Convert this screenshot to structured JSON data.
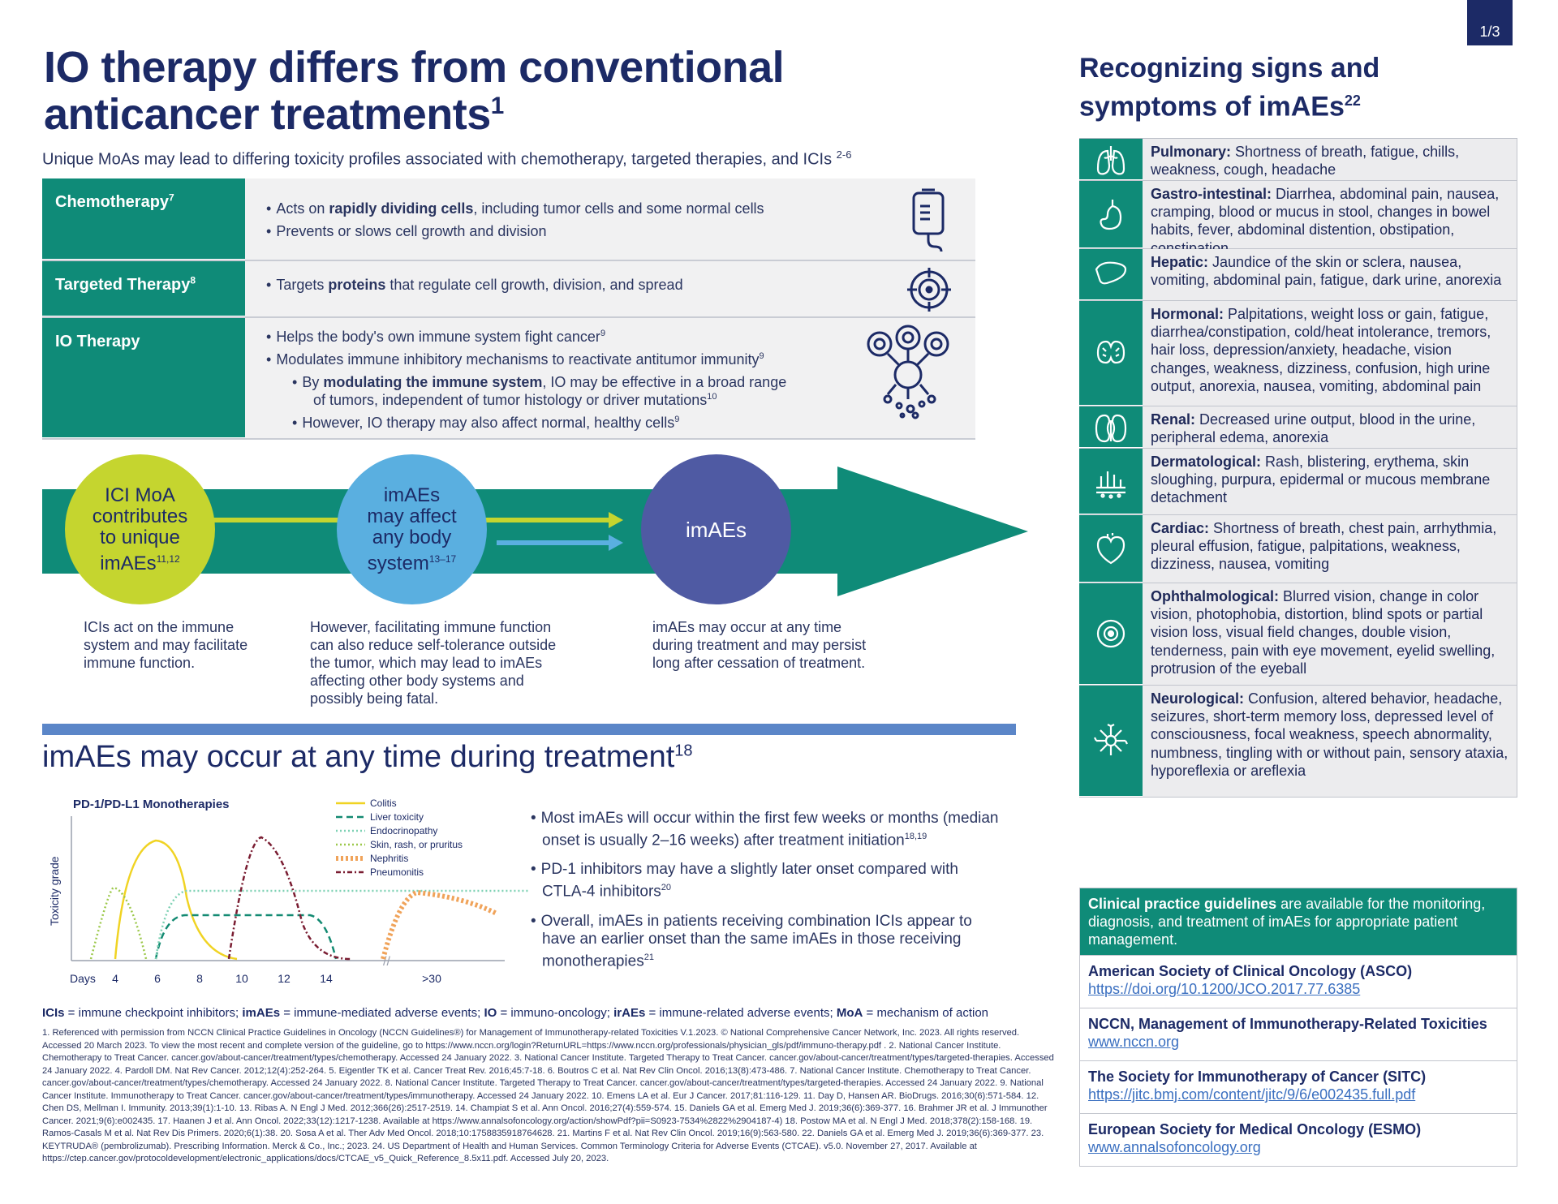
{
  "page_indicator": "1/3",
  "headline": {
    "line1": "IO therapy differs from conventional",
    "line2": "anticancer treatments",
    "sup": "1"
  },
  "subhead": {
    "text": "Unique MoAs may lead to differing toxicity profiles associated with chemotherapy, targeted therapies, and ICIs",
    "sup": "2-6"
  },
  "moa_table": {
    "chemo": {
      "label": "Chemotherapy",
      "sup": "7",
      "b1_pre": "Acts on ",
      "b1_bold": "rapidly dividing cells",
      "b1_post": ", including tumor cells and some normal cells",
      "b2": "Prevents or slows cell growth and division"
    },
    "targeted": {
      "label": "Targeted Therapy",
      "sup": "8",
      "b1_pre": "Targets ",
      "b1_bold": "proteins",
      "b1_post": " that regulate cell growth, division, and spread"
    },
    "io": {
      "label": "IO Therapy",
      "b1": "Helps the body's own immune system fight cancer",
      "b1_sup": "9",
      "b2": "Modulates immune inhibitory mechanisms to reactivate antitumor immunity",
      "b2_sup": "9",
      "b3_pre": "By ",
      "b3_bold": "modulating the immune system",
      "b3_post": ", IO may be effective in a broad range",
      "b3_cont": "of tumors, independent of tumor histology or driver mutations",
      "b3_sup": "10",
      "b4": "However, IO therapy may also affect normal, healthy cells",
      "b4_sup": "9"
    }
  },
  "flow": {
    "c1": {
      "l1": "ICI MoA",
      "l2": "contributes",
      "l3": "to unique",
      "l4": "imAEs",
      "sup": "11,12",
      "caption": [
        "ICIs act on the immune",
        "system and may facilitate",
        "immune function."
      ]
    },
    "c2": {
      "l1": "imAEs",
      "l2": "may affect",
      "l3": "any body",
      "l4": "system",
      "sup": "13–17",
      "caption": [
        "However, facilitating immune function",
        "can also reduce self-tolerance outside",
        "the tumor, which may lead to imAEs",
        "affecting other body systems and",
        "possibly being fatal."
      ]
    },
    "c3": {
      "label": "imAEs",
      "caption": [
        "imAEs may occur at any time",
        "during treatment and may persist",
        "long after cessation of treatment."
      ]
    }
  },
  "section2": {
    "title": "imAEs may occur at any time during treatment",
    "sup": "18"
  },
  "chart_data": {
    "type": "line",
    "title": "PD-1/PD-L1 Monotherapies",
    "ylabel": "Toxicity grade",
    "xlabel": "Days",
    "x_ticks": [
      "4",
      "6",
      "8",
      "10",
      "12",
      "14",
      ">30"
    ],
    "series": [
      {
        "name": "Colitis",
        "color": "#f0d323",
        "style": "solid"
      },
      {
        "name": "Liver toxicity",
        "color": "#138a72",
        "style": "dashed"
      },
      {
        "name": "Endocrinopathy",
        "color": "#7dd1b4",
        "style": "dotted"
      },
      {
        "name": "Skin, rash, or pruritus",
        "color": "#9cc84a",
        "style": "dotted"
      },
      {
        "name": "Nephritis",
        "color": "#f0a35a",
        "style": "dashed-thick"
      },
      {
        "name": "Pneumonitis",
        "color": "#7a1d32",
        "style": "dash-dot"
      }
    ]
  },
  "section2_bullets": [
    {
      "text": "Most imAEs will occur within the first few weeks or months (median onset is usually 2–16 weeks) after treatment initiation",
      "sup": "18,19"
    },
    {
      "text": "PD-1 inhibitors may have a slightly later onset compared with CTLA-4 inhibitors",
      "sup": "20"
    },
    {
      "text": "Overall, imAEs in patients receiving combination ICIs appear to have an earlier onset than the same imAEs in those receiving monotherapies",
      "sup": "21"
    }
  ],
  "abbreviations": [
    {
      "term": "ICIs",
      "def": " = immune checkpoint inhibitors; "
    },
    {
      "term": "imAEs",
      "def": " = immune-mediated adverse events; "
    },
    {
      "term": "IO",
      "def": " = immuno-oncology; "
    },
    {
      "term": "irAEs",
      "def": " = immune-related adverse events; "
    },
    {
      "term": "MoA",
      "def": " = mechanism of action"
    }
  ],
  "references": "1. Referenced with permission from NCCN Clinical Practice Guidelines in Oncology (NCCN Guidelines®) for Management of Immunotherapy-related Toxicities V.1.2023. © National Comprehensive Cancer Network, Inc. 2023. All rights reserved. Accessed 20 March 2023. To view the most recent and complete version of the guideline, go to https://www.nccn.org/login?ReturnURL=https://www.nccn.org/professionals/physician_gls/pdf/immuno-therapy.pdf . 2. National Cancer Institute. Chemotherapy to Treat Cancer. cancer.gov/about-cancer/treatment/types/chemotherapy. Accessed 24 January 2022. 3. National Cancer Institute. Targeted Therapy to Treat Cancer. cancer.gov/about-cancer/treatment/types/targeted-therapies. Accessed 24 January 2022. 4. Pardoll DM. Nat Rev Cancer. 2012;12(4):252-264. 5. Eigentler TK et al. Cancer Treat Rev. 2016;45:7-18. 6. Boutros C et al. Nat Rev Clin Oncol. 2016;13(8):473-486. 7. National Cancer Institute. Chemotherapy to Treat Cancer. cancer.gov/about-cancer/treatment/types/chemotherapy. Accessed 24 January 2022. 8. National Cancer Institute. Targeted Therapy to Treat Cancer. cancer.gov/about-cancer/treatment/types/targeted-therapies. Accessed 24 January 2022. 9. National Cancer Institute. Immunotherapy to Treat Cancer. cancer.gov/about-cancer/treatment/types/immunotherapy. Accessed 24 January 2022. 10. Emens LA et al. Eur J Cancer. 2017;81:116-129. 11. Day D, Hansen AR. BioDrugs. 2016;30(6):571-584. 12. Chen DS, Mellman I. Immunity. 2013;39(1):1-10. 13. Ribas A. N Engl J Med. 2012;366(26):2517-2519. 14. Champiat S et al. Ann Oncol. 2016;27(4):559-574. 15. Daniels GA et al. Emerg Med J. 2019;36(6):369-377. 16. Brahmer JR et al. J Immunother Cancer. 2021;9(6):e002435. 17. Haanen J et al. Ann Oncol. 2022;33(12):1217-1238. Available at https://www.annalsofoncology.org/action/showPdf?pii=S0923-7534%2822%2904187-4) 18. Postow MA et al. N Engl J Med. 2018;378(2):158-168. 19. Ramos-Casals M et al. Nat Rev Dis Primers. 2020;6(1):38. 20. Sosa A et al. Ther Adv Med Oncol. 2018;10:1758835918764628. 21. Martins F et al. Nat Rev Clin Oncol. 2019;16(9):563-580. 22. Daniels GA et al. Emerg Med J. 2019;36(6):369-377. 23. KEYTRUDA® (pembrolizumab). Prescribing Information. Merck & Co., Inc.; 2023. 24. US Department of Health and Human Services. Common Terminology Criteria for Adverse Events (CTCAE). v5.0. November 27, 2017. Available at https://ctep.cancer.gov/protocoldevelopment/electronic_applications/docs/CTCAE_v5_Quick_Reference_8.5x11.pdf. Accessed July 20, 2023.",
  "right_title": {
    "line1": "Recognizing signs and",
    "line2": "symptoms of imAEs",
    "sup": "22"
  },
  "symptoms": [
    {
      "icon": "lungs-icon",
      "title": "Pulmonary:",
      "text": " Shortness of breath, fatigue, chills, weakness, cough, headache"
    },
    {
      "icon": "stomach-icon",
      "title": "Gastro-intestinal:",
      "text": " Diarrhea, abdominal pain, nausea, cramping, blood or mucus in stool, changes in bowel habits, fever, abdominal distention, obstipation, constipation"
    },
    {
      "icon": "liver-icon",
      "title": "Hepatic:",
      "text": " Jaundice of the skin or sclera, nausea, vomiting, abdominal pain, fatigue, dark urine, anorexia"
    },
    {
      "icon": "thyroid-icon",
      "title": "Hormonal:",
      "text": " Palpitations, weight loss or gain, fatigue, diarrhea/constipation, cold/heat intolerance, tremors, hair loss, depression/anxiety, headache, vision changes, weakness, dizziness, confusion, high urine output, anorexia, nausea, vomiting, abdominal pain"
    },
    {
      "icon": "kidney-icon",
      "title": "Renal:",
      "text": " Decreased urine output, blood in the urine, peripheral edema, anorexia"
    },
    {
      "icon": "skin-icon",
      "title": "Dermatological:",
      "text": " Rash, blistering, erythema, skin sloughing, purpura, epidermal or mucous membrane detachment"
    },
    {
      "icon": "heart-icon",
      "title": "Cardiac:",
      "text": " Shortness of breath, chest pain, arrhythmia, pleural effusion, fatigue, palpitations, weakness, dizziness, nausea, vomiting"
    },
    {
      "icon": "eye-icon",
      "title": "Ophthalmological:",
      "text": " Blurred vision, change in color vision, photophobia, distortion, blind spots or partial vision loss, visual field changes, double vision, tenderness, pain with eye movement, eyelid swelling, protrusion of the eyeball"
    },
    {
      "icon": "neuron-icon",
      "title": "Neurological:",
      "text": " Confusion, altered behavior, headache, seizures, short-term memory loss, depressed level of consciousness, focal weakness, speech abnormality, numbness, tingling with or without pain, sensory ataxia, hyporeflexia or areflexia"
    }
  ],
  "guidelines": {
    "head_bold": "Clinical practice guidelines",
    "head_text": " are available for the monitoring, diagnosis, and treatment of imAEs for appropriate patient management.",
    "items": [
      {
        "title": "American Society of Clinical Oncology (ASCO)",
        "link": "https://doi.org/10.1200/JCO.2017.77.6385"
      },
      {
        "title": "NCCN, Management of Immunotherapy-Related Toxicities",
        "link": "www.nccn.org"
      },
      {
        "title": "The Society for Immunotherapy of Cancer (SITC)",
        "link": "https://jitc.bmj.com/content/jitc/9/6/e002435.full.pdf"
      },
      {
        "title": "European Society for Medical Oncology (ESMO)",
        "link": "www.annalsofoncology.org"
      }
    ]
  },
  "colors": {
    "navy": "#1c2a66",
    "teal": "#0f8b78",
    "lime": "#c5d52f",
    "sky": "#5aafe0",
    "indigo": "#4f5aa3",
    "divider": "#5b86c8"
  }
}
